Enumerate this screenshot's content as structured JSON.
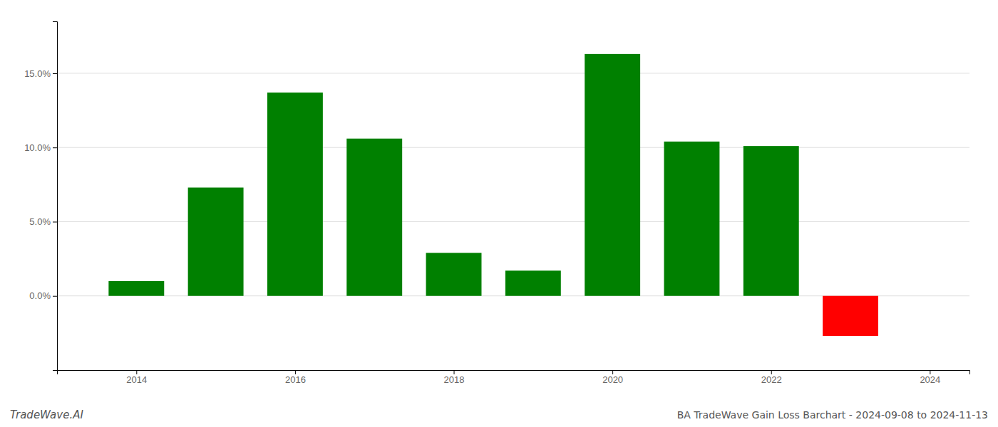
{
  "chart_data": {
    "type": "bar",
    "title": "BA TradeWave Gain Loss Barchart - 2024-09-08 to 2024-11-13",
    "annotations": [
      "TradeWave.AI"
    ],
    "x": [
      2014,
      2015,
      2016,
      2017,
      2018,
      2019,
      2020,
      2021,
      2022,
      2023
    ],
    "values": [
      0.01,
      0.073,
      0.137,
      0.106,
      0.029,
      0.017,
      0.163,
      0.104,
      0.101,
      -0.027
    ],
    "colors": [
      "#008000",
      "#008000",
      "#008000",
      "#008000",
      "#008000",
      "#008000",
      "#008000",
      "#008000",
      "#008000",
      "#ff0000"
    ],
    "xlim": [
      2013.0,
      2024.5
    ],
    "xticks": [
      2014,
      2016,
      2018,
      2020,
      2022,
      2024
    ],
    "ylim": [
      -0.05,
      0.185
    ],
    "yticks": [
      {
        "value": 0.0,
        "label": "0.0%"
      },
      {
        "value": 0.05,
        "label": "5.0%"
      },
      {
        "value": 0.1,
        "label": "10.0%"
      },
      {
        "value": 0.15,
        "label": "15.0%"
      }
    ],
    "grid": true
  }
}
